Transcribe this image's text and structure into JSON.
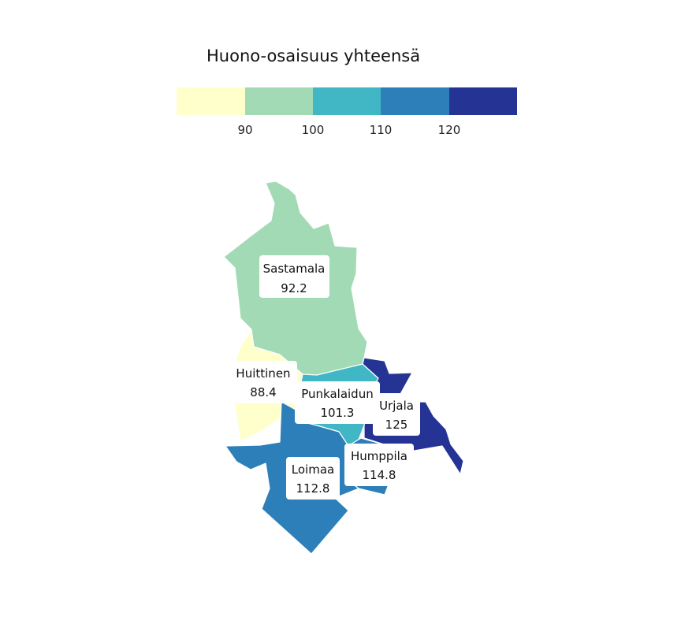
{
  "title": "Huono-osaisuus yhteensä",
  "legend": {
    "bins": [
      {
        "color": "#ffffcc"
      },
      {
        "color": "#a1dab4"
      },
      {
        "color": "#41b6c4"
      },
      {
        "color": "#2c7fb8"
      },
      {
        "color": "#253494"
      }
    ],
    "ticks": [
      "90",
      "100",
      "110",
      "120"
    ]
  },
  "regions": [
    {
      "name": "Sastamala",
      "value": "92.2",
      "color": "#a1dab4"
    },
    {
      "name": "Huittinen",
      "value": "88.4",
      "color": "#ffffcc"
    },
    {
      "name": "Punkalaidun",
      "value": "101.3",
      "color": "#41b6c4"
    },
    {
      "name": "Urjala",
      "value": "125",
      "color": "#253494"
    },
    {
      "name": "Humppila",
      "value": "114.8",
      "color": "#2c7fb8"
    },
    {
      "name": "Loimaa",
      "value": "112.8",
      "color": "#2c7fb8"
    }
  ]
}
